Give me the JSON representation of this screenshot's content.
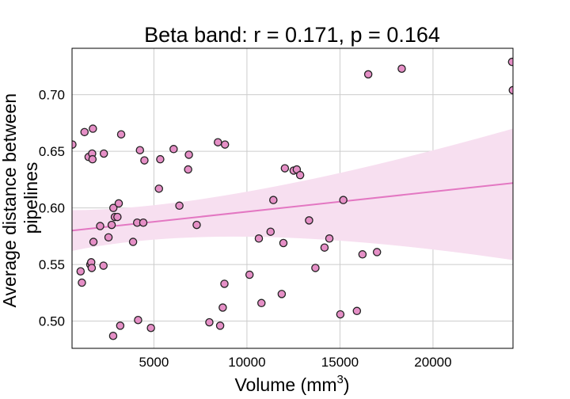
{
  "chart_data": {
    "type": "scatter",
    "title": "Beta band: r = 0.171, p = 0.164",
    "xlabel": "Volume (mm",
    "xlabel_sup": "3",
    "xlabel_end": ")",
    "ylabel_lines": [
      "Average distance between",
      "pipelines"
    ],
    "xlim": [
      600,
      24300
    ],
    "ylim": [
      0.476,
      0.741
    ],
    "x_ticks": [
      5000,
      10000,
      15000,
      20000
    ],
    "x_tick_labels": [
      "5000",
      "10000",
      "15000",
      "20000"
    ],
    "y_ticks": [
      0.5,
      0.55,
      0.6,
      0.65,
      0.7
    ],
    "y_tick_labels": [
      "0.50",
      "0.55",
      "0.60",
      "0.65",
      "0.70"
    ],
    "grid": true,
    "colors": {
      "point_fill": "#e58fc6",
      "point_edge": "#222222",
      "regression_line": "#e377c2",
      "confidence_band": "#f7dff0",
      "grid": "#cccccc",
      "frame": "#000000"
    },
    "regression": {
      "x": [
        600,
        24300
      ],
      "y": [
        0.58,
        0.622
      ],
      "ci_lower": [
        0.562,
        0.554
      ],
      "ci_upper": [
        0.598,
        0.67
      ]
    },
    "points": [
      {
        "x": 620,
        "y": 0.656
      },
      {
        "x": 1060,
        "y": 0.544
      },
      {
        "x": 1130,
        "y": 0.534
      },
      {
        "x": 1270,
        "y": 0.667
      },
      {
        "x": 1490,
        "y": 0.645
      },
      {
        "x": 1580,
        "y": 0.55
      },
      {
        "x": 1630,
        "y": 0.552
      },
      {
        "x": 1660,
        "y": 0.547
      },
      {
        "x": 1680,
        "y": 0.648
      },
      {
        "x": 1700,
        "y": 0.643
      },
      {
        "x": 1720,
        "y": 0.67
      },
      {
        "x": 1750,
        "y": 0.57
      },
      {
        "x": 2110,
        "y": 0.584
      },
      {
        "x": 2290,
        "y": 0.549
      },
      {
        "x": 2310,
        "y": 0.648
      },
      {
        "x": 2560,
        "y": 0.574
      },
      {
        "x": 2730,
        "y": 0.585
      },
      {
        "x": 2810,
        "y": 0.487
      },
      {
        "x": 2820,
        "y": 0.6
      },
      {
        "x": 2900,
        "y": 0.592
      },
      {
        "x": 3040,
        "y": 0.592
      },
      {
        "x": 3110,
        "y": 0.604
      },
      {
        "x": 3190,
        "y": 0.496
      },
      {
        "x": 3240,
        "y": 0.665
      },
      {
        "x": 3880,
        "y": 0.57
      },
      {
        "x": 4100,
        "y": 0.587
      },
      {
        "x": 4150,
        "y": 0.501
      },
      {
        "x": 4250,
        "y": 0.651
      },
      {
        "x": 4430,
        "y": 0.587
      },
      {
        "x": 4490,
        "y": 0.642
      },
      {
        "x": 4840,
        "y": 0.494
      },
      {
        "x": 5270,
        "y": 0.617
      },
      {
        "x": 5340,
        "y": 0.643
      },
      {
        "x": 6060,
        "y": 0.652
      },
      {
        "x": 6370,
        "y": 0.602
      },
      {
        "x": 6840,
        "y": 0.634
      },
      {
        "x": 6880,
        "y": 0.647
      },
      {
        "x": 7300,
        "y": 0.585
      },
      {
        "x": 7980,
        "y": 0.499
      },
      {
        "x": 8440,
        "y": 0.658
      },
      {
        "x": 8560,
        "y": 0.496
      },
      {
        "x": 8700,
        "y": 0.512
      },
      {
        "x": 8790,
        "y": 0.533
      },
      {
        "x": 8820,
        "y": 0.656
      },
      {
        "x": 10140,
        "y": 0.541
      },
      {
        "x": 10640,
        "y": 0.573
      },
      {
        "x": 10780,
        "y": 0.516
      },
      {
        "x": 11270,
        "y": 0.579
      },
      {
        "x": 11420,
        "y": 0.607
      },
      {
        "x": 11870,
        "y": 0.524
      },
      {
        "x": 11960,
        "y": 0.569
      },
      {
        "x": 12040,
        "y": 0.635
      },
      {
        "x": 12510,
        "y": 0.633
      },
      {
        "x": 12680,
        "y": 0.634
      },
      {
        "x": 12860,
        "y": 0.629
      },
      {
        "x": 13340,
        "y": 0.589
      },
      {
        "x": 13680,
        "y": 0.547
      },
      {
        "x": 14170,
        "y": 0.565
      },
      {
        "x": 14430,
        "y": 0.573
      },
      {
        "x": 15020,
        "y": 0.506
      },
      {
        "x": 15180,
        "y": 0.607
      },
      {
        "x": 15910,
        "y": 0.509
      },
      {
        "x": 16210,
        "y": 0.559
      },
      {
        "x": 16520,
        "y": 0.718
      },
      {
        "x": 16990,
        "y": 0.561
      },
      {
        "x": 18320,
        "y": 0.723
      },
      {
        "x": 24250,
        "y": 0.729
      },
      {
        "x": 24290,
        "y": 0.704
      }
    ]
  }
}
